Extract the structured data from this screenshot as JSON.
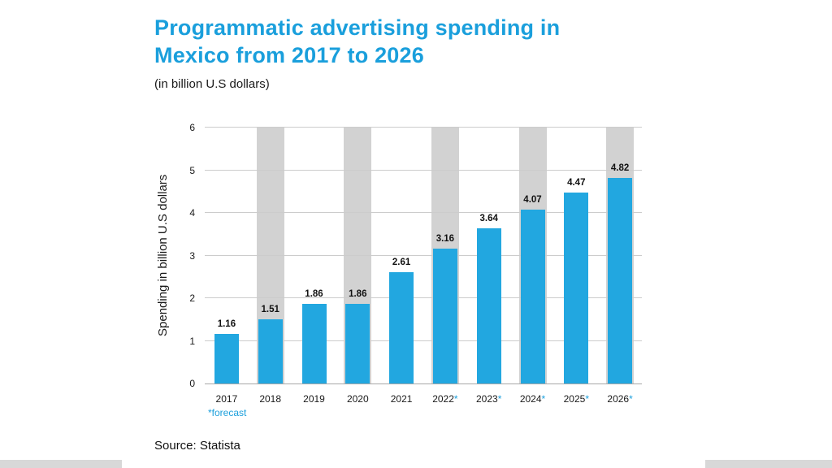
{
  "colors": {
    "accent": "#1a9fdc",
    "bar": "#22a7e0",
    "band": "#d2d2d2"
  },
  "chart_data": {
    "type": "bar",
    "title": "Programmatic advertising spending in Mexico from 2017 to 2026",
    "subtitle": "(in billion U.S dollars)",
    "ylabel": "Spending in billion U.S dollars",
    "ylim": [
      0,
      6
    ],
    "yticks": [
      0,
      1,
      2,
      3,
      4,
      5,
      6
    ],
    "grid": "horizontal",
    "categories": [
      "2017",
      "2018",
      "2019",
      "2020",
      "2021",
      "2022",
      "2023",
      "2024",
      "2025",
      "2026"
    ],
    "forecast_flags": [
      false,
      false,
      false,
      false,
      false,
      true,
      true,
      true,
      true,
      true
    ],
    "values": [
      1.16,
      1.51,
      1.86,
      1.86,
      2.61,
      3.16,
      3.64,
      4.07,
      4.47,
      4.82
    ],
    "value_labels": [
      "1.16",
      "1.51",
      "1.86",
      "1.86",
      "2.61",
      "3.16",
      "3.64",
      "4.07",
      "4.47",
      "4.82"
    ],
    "footnote": "*forecast",
    "source": "Source: Statista"
  }
}
